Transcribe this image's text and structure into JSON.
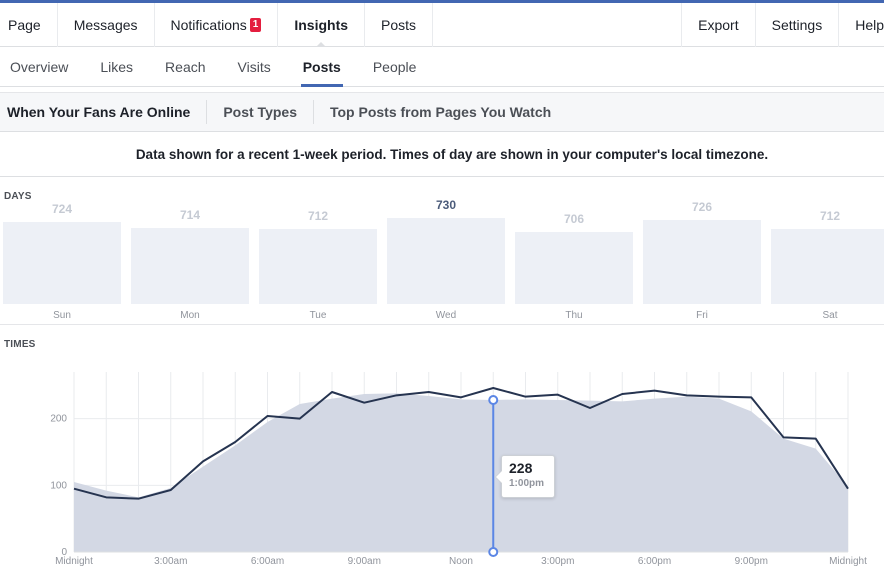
{
  "topnav": {
    "left": [
      {
        "label": "Page"
      },
      {
        "label": "Messages"
      },
      {
        "label": "Notifications",
        "badge": "1"
      },
      {
        "label": "Insights",
        "active": true
      },
      {
        "label": "Posts"
      }
    ],
    "right": [
      {
        "label": "Export"
      },
      {
        "label": "Settings"
      },
      {
        "label": "Help"
      }
    ]
  },
  "subnav": [
    {
      "label": "Overview"
    },
    {
      "label": "Likes"
    },
    {
      "label": "Reach"
    },
    {
      "label": "Visits"
    },
    {
      "label": "Posts",
      "active": true
    },
    {
      "label": "People"
    }
  ],
  "tabs": [
    {
      "label": "When Your Fans Are Online",
      "active": true
    },
    {
      "label": "Post Types"
    },
    {
      "label": "Top Posts from Pages You Watch"
    }
  ],
  "info_text": "Data shown for a recent 1-week period. Times of day are shown in your computer's local timezone.",
  "days_label": "DAYS",
  "times_label": "TIMES",
  "colors": {
    "accent": "#4267b2",
    "line": "#263450",
    "area": "#d3d8e4",
    "bar": "#edf0f6",
    "hover": "#5b86e5"
  },
  "chart_data": [
    {
      "type": "bar",
      "categories": [
        "Sun",
        "Mon",
        "Tue",
        "Wed",
        "Thu",
        "Fri",
        "Sat"
      ],
      "values": [
        724,
        714,
        712,
        730,
        706,
        726,
        712
      ],
      "highlighted": "Wed"
    },
    {
      "type": "line",
      "x": [
        "12:00am",
        "1:00am",
        "2:00am",
        "3:00am",
        "4:00am",
        "5:00am",
        "6:00am",
        "7:00am",
        "8:00am",
        "9:00am",
        "10:00am",
        "11:00am",
        "12:00pm",
        "1:00pm",
        "2:00pm",
        "3:00pm",
        "4:00pm",
        "5:00pm",
        "6:00pm",
        "7:00pm",
        "8:00pm",
        "9:00pm",
        "10:00pm",
        "11:00pm",
        "12:00am"
      ],
      "series": [
        {
          "values": [
            95,
            82,
            80,
            93,
            136,
            165,
            204,
            200,
            240,
            224,
            235,
            240,
            232,
            246,
            233,
            236,
            216,
            237,
            242,
            235,
            233,
            232,
            172,
            170,
            95
          ]
        },
        {
          "values": [
            105,
            92,
            82,
            96,
            128,
            160,
            195,
            222,
            230,
            237,
            238,
            234,
            229,
            228,
            229,
            228,
            227,
            226,
            230,
            233,
            230,
            211,
            170,
            155,
            98
          ]
        }
      ],
      "ylim": [
        0,
        270
      ],
      "yticks": [
        0,
        100,
        200
      ],
      "xtick_labels": [
        "Midnight",
        "3:00am",
        "6:00am",
        "9:00am",
        "Noon",
        "3:00pm",
        "6:00pm",
        "9:00pm",
        "Midnight"
      ],
      "grid": true,
      "tooltip": {
        "value": "228",
        "time": "1:00pm",
        "index": 13
      }
    }
  ]
}
